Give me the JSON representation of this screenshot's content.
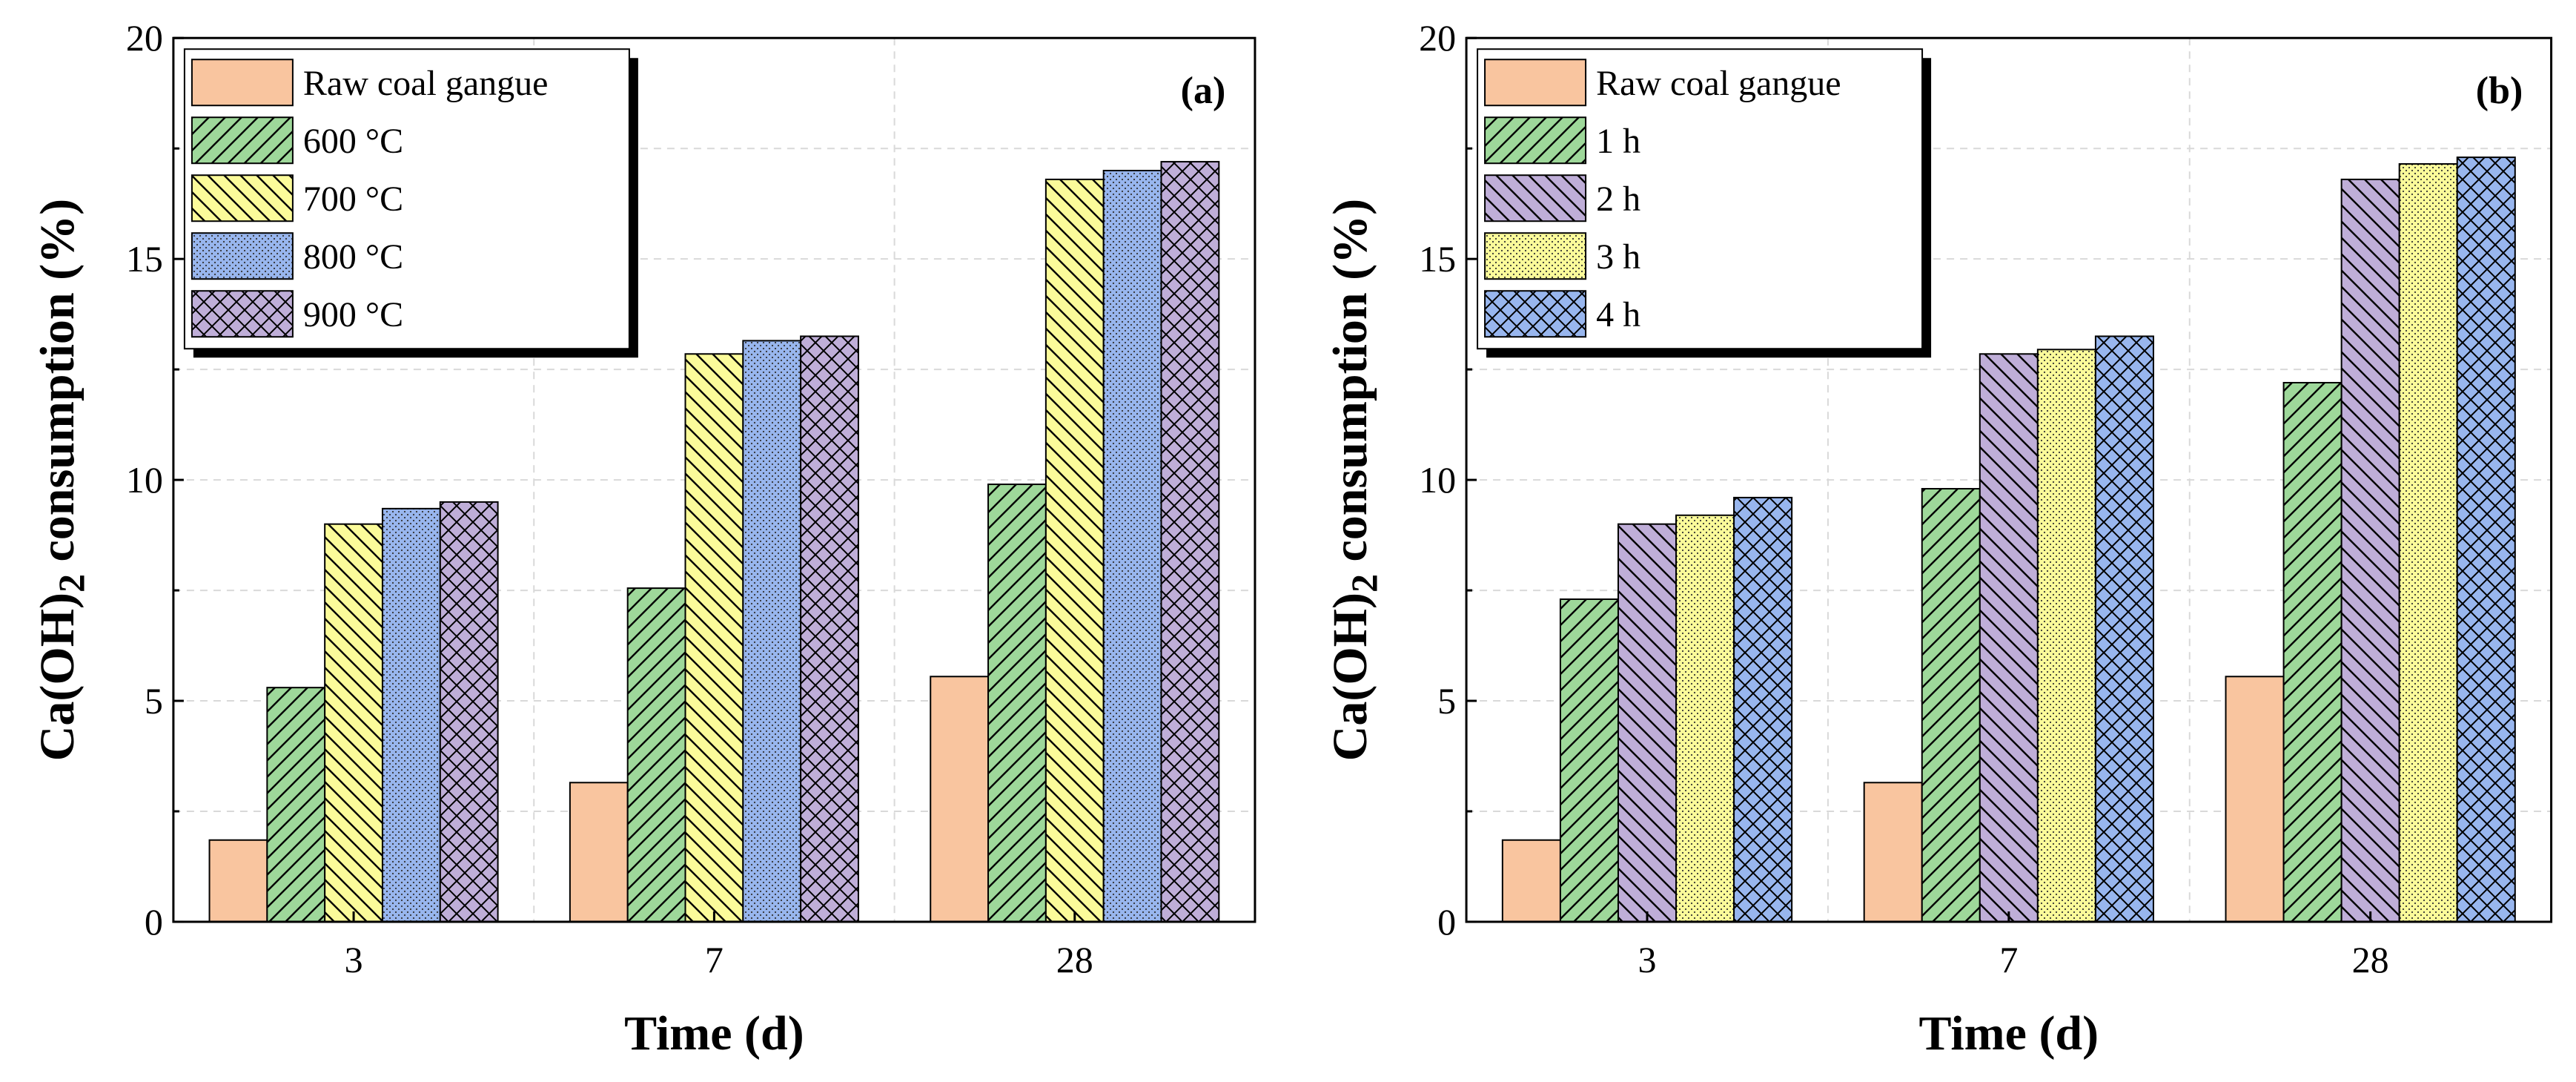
{
  "chart_data": [
    {
      "type": "bar",
      "panel_label": "(a)",
      "xlabel": "Time (d)",
      "ylabel": "Ca(OH)2 consumption (%)",
      "ylabel_parts": {
        "prefix": "Ca(OH)",
        "subscript": "2",
        "suffix": " consumption (%)"
      },
      "categories": [
        "3",
        "7",
        "28"
      ],
      "ylim": [
        0,
        20
      ],
      "yticks": [
        0,
        5,
        10,
        15,
        20
      ],
      "grid": true,
      "legend_position": "top-left",
      "series": [
        {
          "name": "Raw coal gangue",
          "values": [
            1.85,
            3.15,
            5.55
          ],
          "color": "#f9c59f",
          "pattern": "solid"
        },
        {
          "name": "600 °C",
          "values": [
            5.3,
            7.55,
            9.9
          ],
          "color": "#9ed89a",
          "pattern": "forward-hatch"
        },
        {
          "name": "700 °C",
          "values": [
            9.0,
            12.85,
            16.8
          ],
          "color": "#fbfb9a",
          "pattern": "back-hatch"
        },
        {
          "name": "800 °C",
          "values": [
            9.35,
            13.15,
            17.0
          ],
          "color": "#98b6ee",
          "pattern": "dots"
        },
        {
          "name": "900 °C",
          "values": [
            9.5,
            13.25,
            17.2
          ],
          "color": "#bfaed8",
          "pattern": "crosshatch"
        }
      ]
    },
    {
      "type": "bar",
      "panel_label": "(b)",
      "xlabel": "Time (d)",
      "ylabel": "Ca(OH)2 consumption (%)",
      "ylabel_parts": {
        "prefix": "Ca(OH)",
        "subscript": "2",
        "suffix": " consumption (%)"
      },
      "categories": [
        "3",
        "7",
        "28"
      ],
      "ylim": [
        0,
        20
      ],
      "yticks": [
        0,
        5,
        10,
        15,
        20
      ],
      "grid": true,
      "legend_position": "top-left",
      "series": [
        {
          "name": "Raw coal gangue",
          "values": [
            1.85,
            3.15,
            5.55
          ],
          "color": "#f9c59f",
          "pattern": "solid"
        },
        {
          "name": "1 h",
          "values": [
            7.3,
            9.8,
            12.2
          ],
          "color": "#9ed89a",
          "pattern": "forward-hatch"
        },
        {
          "name": "2 h",
          "values": [
            9.0,
            12.85,
            16.8
          ],
          "color": "#bfaed8",
          "pattern": "back-hatch"
        },
        {
          "name": "3 h",
          "values": [
            9.2,
            12.95,
            17.15
          ],
          "color": "#fbfb9a",
          "pattern": "dots"
        },
        {
          "name": "4 h",
          "values": [
            9.6,
            13.25,
            17.3
          ],
          "color": "#98b6ee",
          "pattern": "crosshatch"
        }
      ]
    }
  ]
}
